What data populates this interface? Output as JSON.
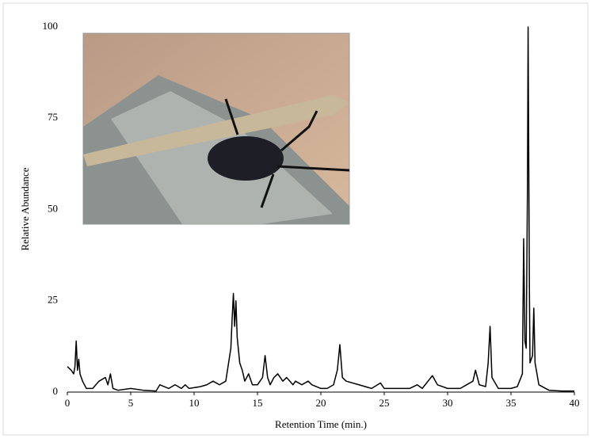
{
  "chart_data": {
    "type": "line",
    "xlabel": "Retention Time (min.)",
    "ylabel": "Relative Abundance",
    "xlim": [
      0,
      40
    ],
    "xticks": [
      0,
      5,
      10,
      15,
      20,
      25,
      30,
      35,
      40
    ],
    "ylim": [
      0,
      100
    ],
    "yticks": [
      0,
      25,
      50,
      75,
      100
    ],
    "grid": false,
    "series": [
      {
        "color": "#000000",
        "x": [
          0,
          0.3,
          0.5,
          0.6,
          0.7,
          0.8,
          0.9,
          1.0,
          1.2,
          1.5,
          2.0,
          2.5,
          3.0,
          3.2,
          3.4,
          3.6,
          4.0,
          5.0,
          6.0,
          7.0,
          7.3,
          8.0,
          8.5,
          9.0,
          9.3,
          9.6,
          10.5,
          11.0,
          11.5,
          12.0,
          12.5,
          12.9,
          13.0,
          13.1,
          13.2,
          13.3,
          13.4,
          13.6,
          13.8,
          14.0,
          14.3,
          14.6,
          15.0,
          15.4,
          15.6,
          15.8,
          16.0,
          16.3,
          16.6,
          17.0,
          17.3,
          17.8,
          18.0,
          18.5,
          19.0,
          19.3,
          20.0,
          20.5,
          21.0,
          21.3,
          21.5,
          21.7,
          22.0,
          23.0,
          24.0,
          24.7,
          25.0,
          26.0,
          27.0,
          27.6,
          28.0,
          28.8,
          29.2,
          30.0,
          31.0,
          32.0,
          32.2,
          32.5,
          33.0,
          33.2,
          33.35,
          33.5,
          34.0,
          35.0,
          35.5,
          35.9,
          36.0,
          36.1,
          36.2,
          36.3,
          36.35,
          36.45,
          36.5,
          36.7,
          36.8,
          36.9,
          37.2,
          38.0,
          39.0,
          40.0
        ],
        "values": [
          7,
          6,
          5,
          7,
          14,
          6,
          9,
          5,
          3,
          1,
          1,
          3,
          4,
          2,
          5,
          1,
          0.5,
          1,
          0.5,
          0.3,
          2,
          1,
          2,
          1,
          2,
          1,
          1.5,
          2,
          3,
          2,
          3,
          12,
          20,
          27,
          18,
          25,
          15,
          8,
          6,
          3,
          5,
          2,
          2,
          4,
          10,
          4,
          2,
          4,
          5,
          3,
          4,
          2,
          3,
          2,
          3,
          2,
          1,
          1,
          2,
          6,
          13,
          4,
          3,
          2,
          1,
          2.5,
          1,
          1,
          1,
          2,
          1,
          4.5,
          2,
          1,
          1,
          3,
          6,
          2,
          1.5,
          8,
          18,
          4,
          1,
          1,
          1.5,
          5,
          42,
          14,
          12,
          56,
          100,
          30,
          8,
          10,
          23,
          8,
          2,
          0.5,
          0.3,
          0.3
        ]
      }
    ]
  }
}
